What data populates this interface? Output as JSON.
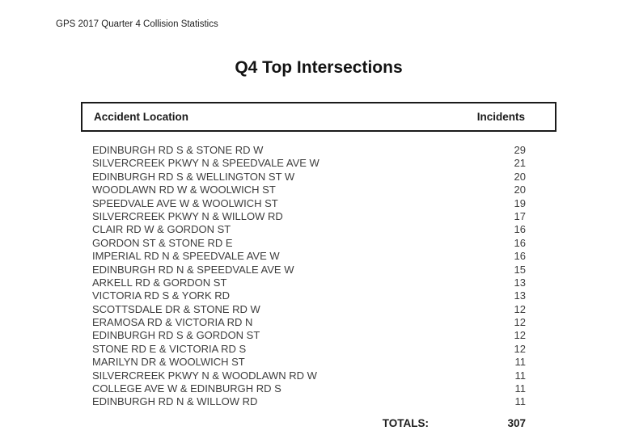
{
  "page": {
    "header_note": "GPS 2017 Quarter 4 Collision Statistics",
    "title": "Q4 Top Intersections"
  },
  "table": {
    "columns": {
      "location": "Accident Location",
      "incidents": "Incidents"
    },
    "rows": [
      {
        "location": "EDINBURGH RD S & STONE RD W",
        "incidents": 29
      },
      {
        "location": "SILVERCREEK PKWY N & SPEEDVALE AVE W",
        "incidents": 21
      },
      {
        "location": "EDINBURGH RD S & WELLINGTON ST W",
        "incidents": 20
      },
      {
        "location": "WOODLAWN RD W & WOOLWICH ST",
        "incidents": 20
      },
      {
        "location": "SPEEDVALE AVE W & WOOLWICH ST",
        "incidents": 19
      },
      {
        "location": "SILVERCREEK PKWY N & WILLOW RD",
        "incidents": 17
      },
      {
        "location": "CLAIR RD W & GORDON ST",
        "incidents": 16
      },
      {
        "location": "GORDON ST & STONE RD E",
        "incidents": 16
      },
      {
        "location": "IMPERIAL RD N & SPEEDVALE AVE W",
        "incidents": 16
      },
      {
        "location": "EDINBURGH RD N & SPEEDVALE AVE W",
        "incidents": 15
      },
      {
        "location": "ARKELL RD & GORDON ST",
        "incidents": 13
      },
      {
        "location": "VICTORIA RD S & YORK RD",
        "incidents": 13
      },
      {
        "location": "SCOTTSDALE DR & STONE RD W",
        "incidents": 12
      },
      {
        "location": "ERAMOSA RD & VICTORIA RD N",
        "incidents": 12
      },
      {
        "location": "EDINBURGH RD S & GORDON ST",
        "incidents": 12
      },
      {
        "location": "STONE RD E & VICTORIA RD S",
        "incidents": 12
      },
      {
        "location": "MARILYN DR & WOOLWICH ST",
        "incidents": 11
      },
      {
        "location": "SILVERCREEK PKWY N & WOODLAWN RD W",
        "incidents": 11
      },
      {
        "location": "COLLEGE AVE W & EDINBURGH RD S",
        "incidents": 11
      },
      {
        "location": "EDINBURGH RD N & WILLOW RD",
        "incidents": 11
      }
    ],
    "totals_label": "TOTALS:",
    "totals_value": 307
  },
  "chart_data": {
    "type": "table",
    "title": "Q4 Top Intersections",
    "categories": [
      "EDINBURGH RD S & STONE RD W",
      "SILVERCREEK PKWY N & SPEEDVALE AVE W",
      "EDINBURGH RD S & WELLINGTON ST W",
      "WOODLAWN RD W & WOOLWICH ST",
      "SPEEDVALE AVE W & WOOLWICH ST",
      "SILVERCREEK PKWY N & WILLOW RD",
      "CLAIR RD W & GORDON ST",
      "GORDON ST & STONE RD E",
      "IMPERIAL RD N & SPEEDVALE AVE W",
      "EDINBURGH RD N & SPEEDVALE AVE W",
      "ARKELL RD & GORDON ST",
      "VICTORIA RD S & YORK RD",
      "SCOTTSDALE DR & STONE RD W",
      "ERAMOSA RD & VICTORIA RD N",
      "EDINBURGH RD S & GORDON ST",
      "STONE RD E & VICTORIA RD S",
      "MARILYN DR & WOOLWICH ST",
      "SILVERCREEK PKWY N & WOODLAWN RD W",
      "COLLEGE AVE W & EDINBURGH RD S",
      "EDINBURGH RD N & WILLOW RD"
    ],
    "values": [
      29,
      21,
      20,
      20,
      19,
      17,
      16,
      16,
      16,
      15,
      13,
      13,
      12,
      12,
      12,
      12,
      11,
      11,
      11,
      11
    ],
    "total": 307
  },
  "colors": {
    "background": "#ffffff",
    "border": "#1a1a1a",
    "heading_text": "#1a1a1a",
    "body_text": "#3d3d3d"
  }
}
